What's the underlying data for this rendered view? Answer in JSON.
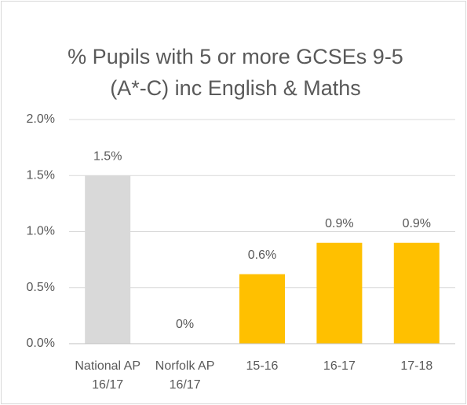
{
  "chart_data": {
    "type": "bar",
    "title": "% Pupils with 5 or more GCSEs 9-5 (A*-C) inc English & Maths",
    "categories": [
      "National AP 16/17",
      "Norfolk AP 16/17",
      "15-16",
      "16-17",
      "17-18"
    ],
    "values": [
      1.5,
      0,
      0.62,
      0.9,
      0.9
    ],
    "value_labels": [
      "1.5%",
      "0%",
      "0.6%",
      "0.9%",
      "0.9%"
    ],
    "colors": [
      "#d9d9d9",
      "#ffc000",
      "#ffc000",
      "#ffc000",
      "#ffc000"
    ],
    "ylim": [
      0,
      2
    ],
    "yticks": [
      {
        "value": 0,
        "label": "0.0%"
      },
      {
        "value": 0.5,
        "label": "0.5%"
      },
      {
        "value": 1,
        "label": "1.0%"
      },
      {
        "value": 1.5,
        "label": "1.5%"
      },
      {
        "value": 2,
        "label": "2.0%"
      }
    ],
    "grid": true
  }
}
